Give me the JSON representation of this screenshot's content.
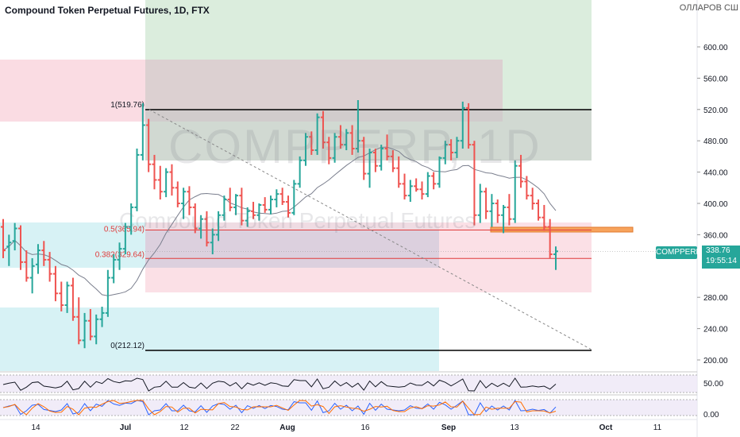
{
  "header": {
    "title": "Compound Token Perpetual Futures, 1D, FTX",
    "currency": "ОЛЛАРОВ СШ"
  },
  "watermark": {
    "symbol": "COMPPERP, 1D",
    "name": "Compound Token Perpetual Futures"
  },
  "last_price": {
    "symbol": "COMPPERP",
    "price": "338.76",
    "countdown": "19:55:14"
  },
  "fib": {
    "level_1": "1(519.76)",
    "level_05": "0.5(365.94)",
    "level_0382": "0.382(329.64)",
    "level_0": "0(212.12)"
  },
  "colors": {
    "up": "#26a69a",
    "down": "#ef5350",
    "green_zone": "#d7ebd9",
    "pink_zone": "#f9d3dc",
    "gray_zone": "#c9c9c9",
    "cyan_zone": "#d3f1f4",
    "orange_box": "#f7a35c",
    "ma_line": "#7b7f8e"
  },
  "chart_data": {
    "type": "candlestick",
    "ylim": [
      190,
      640
    ],
    "price_axis_ticks": [
      "600.00",
      "560.00",
      "520.00",
      "480.00",
      "440.00",
      "400.00",
      "360.00",
      "280.00",
      "240.00",
      "200.00"
    ],
    "time_axis_labels": [
      "14",
      "Jul",
      "12",
      "22",
      "Aug",
      "16",
      "Sep",
      "13",
      "Oct",
      "11"
    ],
    "indicator_ticks": [
      "50.00",
      "0.00"
    ],
    "ohlc": [
      [
        370,
        380,
        330,
        340
      ],
      [
        345,
        360,
        320,
        350
      ],
      [
        352,
        375,
        340,
        368
      ],
      [
        368,
        372,
        315,
        325
      ],
      [
        325,
        340,
        300,
        305
      ],
      [
        305,
        330,
        285,
        320
      ],
      [
        322,
        348,
        310,
        340
      ],
      [
        340,
        352,
        320,
        328
      ],
      [
        328,
        338,
        300,
        310
      ],
      [
        310,
        320,
        275,
        285
      ],
      [
        285,
        300,
        262,
        270
      ],
      [
        270,
        300,
        260,
        295
      ],
      [
        295,
        305,
        250,
        255
      ],
      [
        255,
        280,
        220,
        225
      ],
      [
        225,
        260,
        215,
        250
      ],
      [
        250,
        265,
        225,
        230
      ],
      [
        230,
        258,
        220,
        252
      ],
      [
        252,
        268,
        242,
        260
      ],
      [
        260,
        315,
        255,
        305
      ],
      [
        305,
        335,
        298,
        328
      ],
      [
        328,
        350,
        315,
        342
      ],
      [
        342,
        375,
        335,
        370
      ],
      [
        370,
        400,
        360,
        395
      ],
      [
        395,
        470,
        390,
        462
      ],
      [
        462,
        528,
        455,
        500
      ],
      [
        500,
        508,
        440,
        450
      ],
      [
        450,
        462,
        418,
        430
      ],
      [
        430,
        448,
        405,
        415
      ],
      [
        415,
        445,
        408,
        440
      ],
      [
        440,
        450,
        410,
        420
      ],
      [
        420,
        428,
        395,
        400
      ],
      [
        400,
        420,
        380,
        415
      ],
      [
        415,
        422,
        385,
        395
      ],
      [
        395,
        400,
        362,
        368
      ],
      [
        368,
        385,
        355,
        380
      ],
      [
        380,
        390,
        345,
        350
      ],
      [
        350,
        368,
        335,
        360
      ],
      [
        360,
        390,
        352,
        385
      ],
      [
        385,
        410,
        378,
        405
      ],
      [
        405,
        420,
        390,
        395
      ],
      [
        395,
        412,
        385,
        410
      ],
      [
        410,
        420,
        372,
        378
      ],
      [
        378,
        395,
        370,
        390
      ],
      [
        390,
        402,
        380,
        385
      ],
      [
        385,
        400,
        378,
        398
      ],
      [
        398,
        408,
        388,
        392
      ],
      [
        392,
        410,
        386,
        405
      ],
      [
        405,
        418,
        395,
        412
      ],
      [
        412,
        420,
        398,
        402
      ],
      [
        402,
        410,
        382,
        388
      ],
      [
        388,
        430,
        385,
        425
      ],
      [
        425,
        460,
        420,
        455
      ],
      [
        455,
        490,
        448,
        485
      ],
      [
        485,
        492,
        462,
        468
      ],
      [
        468,
        515,
        462,
        510
      ],
      [
        510,
        518,
        470,
        478
      ],
      [
        478,
        485,
        450,
        458
      ],
      [
        458,
        490,
        452,
        485
      ],
      [
        485,
        500,
        470,
        475
      ],
      [
        475,
        495,
        468,
        490
      ],
      [
        490,
        500,
        462,
        470
      ],
      [
        470,
        532,
        465,
        480
      ],
      [
        480,
        485,
        430,
        438
      ],
      [
        438,
        470,
        420,
        465
      ],
      [
        465,
        470,
        440,
        448
      ],
      [
        448,
        475,
        442,
        470
      ],
      [
        470,
        488,
        455,
        460
      ],
      [
        460,
        468,
        440,
        445
      ],
      [
        445,
        460,
        420,
        425
      ],
      [
        425,
        438,
        405,
        410
      ],
      [
        410,
        430,
        402,
        422
      ],
      [
        422,
        432,
        415,
        418
      ],
      [
        418,
        428,
        405,
        412
      ],
      [
        412,
        440,
        408,
        435
      ],
      [
        435,
        440,
        418,
        425
      ],
      [
        425,
        460,
        420,
        458
      ],
      [
        458,
        480,
        450,
        475
      ],
      [
        475,
        482,
        455,
        465
      ],
      [
        465,
        485,
        458,
        480
      ],
      [
        480,
        530,
        470,
        522
      ],
      [
        522,
        528,
        470,
        475
      ],
      [
        475,
        480,
        372,
        385
      ],
      [
        385,
        425,
        375,
        415
      ],
      [
        415,
        420,
        380,
        390
      ],
      [
        390,
        412,
        370,
        400
      ],
      [
        400,
        405,
        375,
        385
      ],
      [
        385,
        398,
        362,
        395
      ],
      [
        395,
        412,
        372,
        380
      ],
      [
        380,
        455,
        375,
        448
      ],
      [
        448,
        462,
        420,
        428
      ],
      [
        428,
        435,
        405,
        410
      ],
      [
        410,
        420,
        392,
        400
      ],
      [
        400,
        405,
        378,
        382
      ],
      [
        382,
        398,
        365,
        370
      ],
      [
        370,
        380,
        330,
        335
      ],
      [
        335,
        345,
        315,
        338.76
      ]
    ]
  }
}
